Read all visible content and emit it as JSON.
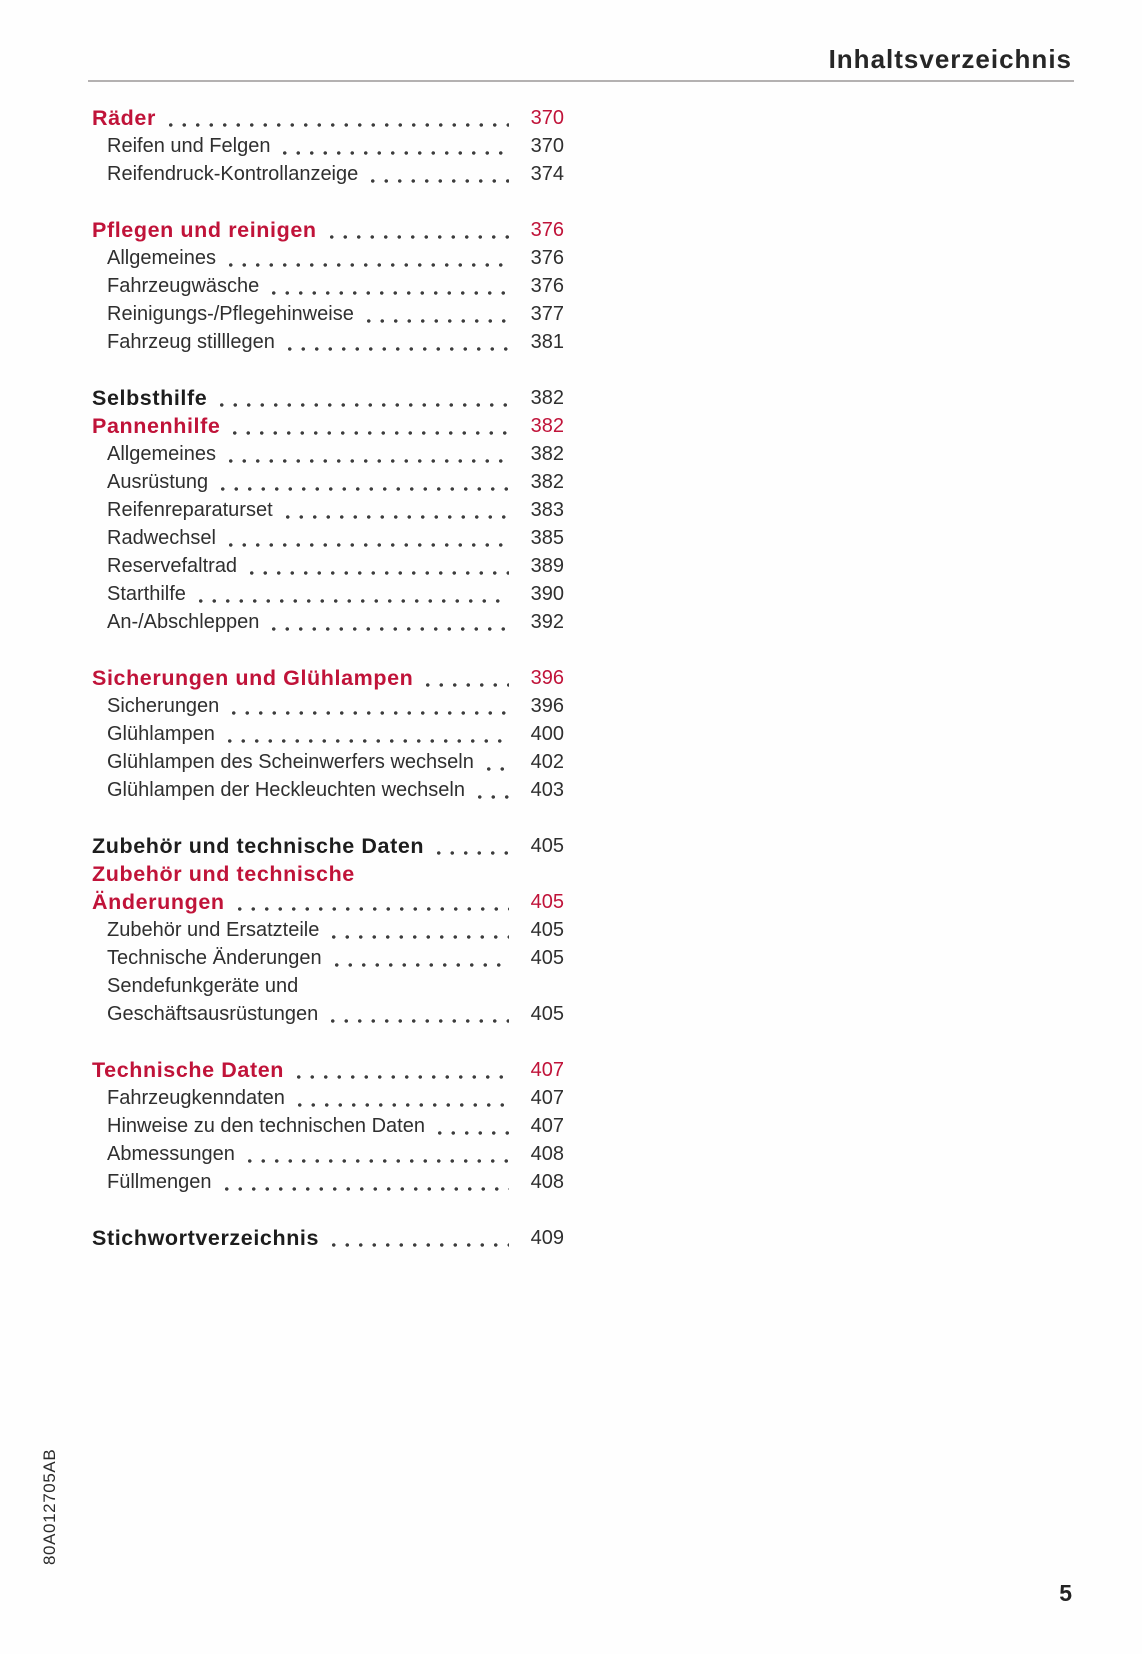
{
  "document": {
    "header_title": "Inhaltsverzeichnis",
    "page_number": "5",
    "spine_code": "80A012705AB"
  },
  "colors": {
    "accent_red": "#c01339",
    "text_dark": "#2f2f2f",
    "bold_dark": "#1d1d1d",
    "rule_gray": "#b4b1b1",
    "dot_gray": "#3c3c3c"
  },
  "toc": {
    "sections": [
      {
        "rows": [
          {
            "label": "Räder",
            "page": "370",
            "style": "chapter-accent"
          },
          {
            "label": "Reifen und Felgen",
            "page": "370",
            "style": "sub"
          },
          {
            "label": "Reifendruck-Kontrollanzeige",
            "page": "374",
            "style": "sub"
          }
        ]
      },
      {
        "rows": [
          {
            "label": "Pflegen und reinigen",
            "page": "376",
            "style": "chapter-accent"
          },
          {
            "label": "Allgemeines",
            "page": "376",
            "style": "sub"
          },
          {
            "label": "Fahrzeugwäsche",
            "page": "376",
            "style": "sub"
          },
          {
            "label": "Reinigungs-/Pflegehinweise",
            "page": "377",
            "style": "sub"
          },
          {
            "label": "Fahrzeug stilllegen",
            "page": "381",
            "style": "sub"
          }
        ]
      },
      {
        "rows": [
          {
            "label": "Selbsthilfe",
            "page": "382",
            "style": "chapter"
          },
          {
            "label": "Pannenhilfe",
            "page": "382",
            "style": "chapter-accent"
          },
          {
            "label": "Allgemeines",
            "page": "382",
            "style": "sub"
          },
          {
            "label": "Ausrüstung",
            "page": "382",
            "style": "sub"
          },
          {
            "label": "Reifenreparaturset",
            "page": "383",
            "style": "sub"
          },
          {
            "label": "Radwechsel",
            "page": "385",
            "style": "sub"
          },
          {
            "label": "Reservefaltrad",
            "page": "389",
            "style": "sub"
          },
          {
            "label": "Starthilfe",
            "page": "390",
            "style": "sub"
          },
          {
            "label": "An-/Abschleppen",
            "page": "392",
            "style": "sub"
          }
        ]
      },
      {
        "rows": [
          {
            "label": "Sicherungen und Glühlampen",
            "page": "396",
            "style": "chapter-accent"
          },
          {
            "label": "Sicherungen",
            "page": "396",
            "style": "sub"
          },
          {
            "label": "Glühlampen",
            "page": "400",
            "style": "sub"
          },
          {
            "label": "Glühlampen des Scheinwerfers wechseln",
            "page": "402",
            "style": "sub"
          },
          {
            "label": "Glühlampen der Heckleuchten wechseln",
            "page": "403",
            "style": "sub"
          }
        ]
      },
      {
        "rows": [
          {
            "label": "Zubehör und technische Daten",
            "page": "405",
            "style": "chapter"
          },
          {
            "label": "Zubehör und technische",
            "style": "chapter-accent"
          },
          {
            "label": "Änderungen",
            "page": "405",
            "style": "chapter-accent"
          },
          {
            "label": "Zubehör und Ersatzteile",
            "page": "405",
            "style": "sub"
          },
          {
            "label": "Technische Änderungen",
            "page": "405",
            "style": "sub"
          },
          {
            "label": "Sendefunkgeräte und",
            "style": "sub"
          },
          {
            "label": "Geschäftsausrüstungen",
            "page": "405",
            "style": "sub"
          }
        ]
      },
      {
        "rows": [
          {
            "label": "Technische Daten",
            "page": "407",
            "style": "chapter-accent"
          },
          {
            "label": "Fahrzeugkenndaten",
            "page": "407",
            "style": "sub"
          },
          {
            "label": "Hinweise zu den technischen Daten",
            "page": "407",
            "style": "sub"
          },
          {
            "label": "Abmessungen",
            "page": "408",
            "style": "sub"
          },
          {
            "label": "Füllmengen",
            "page": "408",
            "style": "sub"
          }
        ]
      },
      {
        "rows": [
          {
            "label": "Stichwortverzeichnis",
            "page": "409",
            "style": "chapter"
          }
        ]
      }
    ]
  }
}
